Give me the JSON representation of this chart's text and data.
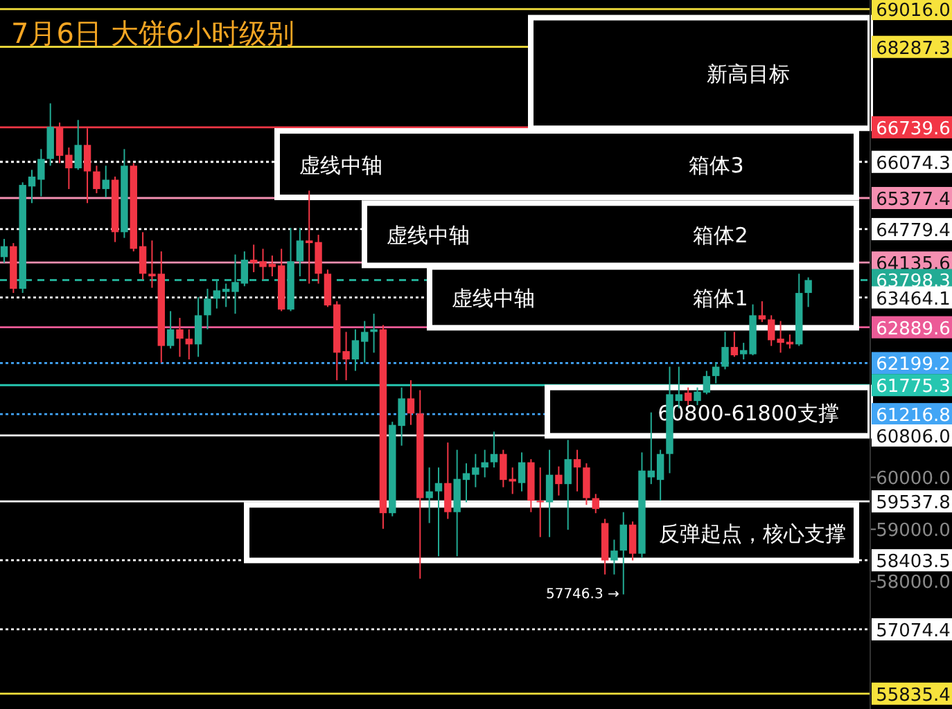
{
  "chart_data": {
    "type": "candlestick",
    "title": "7月6日 大饼6小时级别",
    "tick_labels": "y",
    "categories": [
      null,
      null,
      null,
      null,
      null,
      null,
      null,
      null,
      null,
      null,
      null,
      null,
      null,
      null,
      null,
      null,
      null,
      null,
      null,
      null,
      null,
      null,
      null,
      null,
      null,
      null,
      null,
      null,
      null,
      null,
      null,
      null,
      null,
      null,
      null,
      null,
      null,
      null,
      null,
      null,
      null,
      null,
      null,
      null,
      null,
      null,
      null,
      null,
      null,
      null,
      null,
      null,
      null,
      null,
      null,
      null,
      null,
      null,
      null,
      null,
      null,
      null,
      null,
      null,
      null,
      null,
      null,
      null,
      null,
      null,
      null,
      null,
      null,
      null,
      null,
      null,
      null,
      null,
      null,
      null,
      null,
      null,
      null,
      null,
      null,
      null,
      null,
      null
    ],
    "ohlc": [
      [
        64240,
        64590,
        64130,
        64450
      ],
      [
        64450,
        64510,
        63550,
        63630
      ],
      [
        63630,
        65680,
        63550,
        65630
      ],
      [
        65600,
        65920,
        65280,
        65790
      ],
      [
        65730,
        66320,
        65410,
        66130
      ],
      [
        66130,
        67200,
        66000,
        66750
      ],
      [
        66750,
        66830,
        66050,
        66190
      ],
      [
        66210,
        66350,
        65550,
        65950
      ],
      [
        65950,
        66880,
        65920,
        66400
      ],
      [
        66400,
        66720,
        65280,
        65890
      ],
      [
        65890,
        66000,
        65470,
        65550
      ],
      [
        65550,
        66000,
        65390,
        65730
      ],
      [
        65730,
        65790,
        64530,
        64720
      ],
      [
        64720,
        66320,
        64610,
        66000
      ],
      [
        66000,
        66050,
        64350,
        64400
      ],
      [
        64450,
        64720,
        63810,
        63920
      ],
      [
        63920,
        64560,
        63650,
        63870
      ],
      [
        63920,
        64350,
        62210,
        62530
      ],
      [
        62530,
        63200,
        62480,
        62850
      ],
      [
        62850,
        63070,
        62320,
        62670
      ],
      [
        62670,
        62850,
        62270,
        62560
      ],
      [
        62560,
        63470,
        62320,
        63120
      ],
      [
        63120,
        63630,
        62850,
        63440
      ],
      [
        63440,
        63810,
        63250,
        63600
      ],
      [
        63570,
        63730,
        63280,
        63630
      ],
      [
        63570,
        64290,
        63150,
        63760
      ],
      [
        63730,
        64350,
        63680,
        64190
      ],
      [
        64190,
        64480,
        63950,
        64130
      ],
      [
        64160,
        64400,
        63810,
        64050
      ],
      [
        64110,
        64270,
        63870,
        64050
      ],
      [
        64080,
        64400,
        63200,
        63230
      ],
      [
        63230,
        64800,
        63200,
        64160
      ],
      [
        64160,
        64800,
        63870,
        64560
      ],
      [
        64560,
        65520,
        63730,
        64510
      ],
      [
        64530,
        64670,
        63730,
        63920
      ],
      [
        63920,
        64000,
        63280,
        63310
      ],
      [
        63330,
        63390,
        61870,
        62400
      ],
      [
        62430,
        62800,
        61870,
        62270
      ],
      [
        62270,
        62850,
        62050,
        62640
      ],
      [
        62610,
        63010,
        62210,
        62800
      ],
      [
        62800,
        63150,
        62400,
        62850
      ],
      [
        62850,
        62930,
        59010,
        59310
      ],
      [
        59310,
        61070,
        59250,
        61010
      ],
      [
        60990,
        61730,
        60610,
        61520
      ],
      [
        61520,
        61870,
        61010,
        61230
      ],
      [
        61230,
        61680,
        58050,
        59600
      ],
      [
        59600,
        60190,
        59120,
        59730
      ],
      [
        59730,
        60190,
        58480,
        59890
      ],
      [
        59890,
        60670,
        59200,
        59330
      ],
      [
        59330,
        60530,
        58480,
        59970
      ],
      [
        59950,
        60270,
        59520,
        60080
      ],
      [
        60050,
        60450,
        59810,
        60190
      ],
      [
        60190,
        60530,
        60000,
        60290
      ],
      [
        60290,
        60880,
        60190,
        60450
      ],
      [
        60450,
        60530,
        59810,
        59950
      ],
      [
        59970,
        60190,
        59680,
        59920
      ],
      [
        59890,
        60480,
        59730,
        60290
      ],
      [
        60290,
        60350,
        59330,
        59550
      ],
      [
        59550,
        60190,
        58850,
        59520
      ],
      [
        59520,
        60530,
        58850,
        60050
      ],
      [
        60050,
        60210,
        59650,
        59870
      ],
      [
        59870,
        60720,
        58990,
        60350
      ],
      [
        60350,
        60530,
        59730,
        60190
      ],
      [
        60190,
        60270,
        59470,
        59600
      ],
      [
        59600,
        59680,
        59310,
        59390
      ],
      [
        59120,
        59200,
        58130,
        58400
      ],
      [
        58400,
        58800,
        58130,
        58590
      ],
      [
        58590,
        59330,
        57746.3,
        59090
      ],
      [
        59090,
        59150,
        58400,
        58530
      ],
      [
        58530,
        60480,
        58450,
        60130
      ],
      [
        60000,
        61250,
        59870,
        60130
      ],
      [
        59950,
        60530,
        59550,
        60450
      ],
      [
        60450,
        62130,
        60080,
        61600
      ],
      [
        61470,
        62130,
        61330,
        61600
      ],
      [
        61630,
        61730,
        61390,
        61470
      ],
      [
        61470,
        61730,
        61390,
        61650
      ],
      [
        61630,
        62050,
        61600,
        61950
      ],
      [
        61950,
        62210,
        61810,
        62130
      ],
      [
        62130,
        62800,
        62080,
        62510
      ],
      [
        62510,
        62800,
        62320,
        62350
      ],
      [
        62370,
        62590,
        62270,
        62450
      ],
      [
        62370,
        63330,
        62350,
        63120
      ],
      [
        63120,
        63390,
        62990,
        63040
      ],
      [
        63040,
        63120,
        62530,
        62640
      ],
      [
        62670,
        63010,
        62400,
        62590
      ],
      [
        62610,
        62750,
        62480,
        62560
      ],
      [
        62560,
        63920,
        62530,
        63550
      ],
      [
        63550,
        63850,
        63280,
        63798.3
      ]
    ],
    "colors": [
      "#22ab94",
      "#f23645",
      "#22ab94",
      "#22ab94",
      "#22ab94",
      "#22ab94",
      "#f23645",
      "#f23645",
      "#22ab94",
      "#f23645",
      "#f23645",
      "#22ab94",
      "#f23645",
      "#22ab94",
      "#f23645",
      "#f23645",
      "#f23645",
      "#f23645",
      "#22ab94",
      "#f23645",
      "#f23645",
      "#22ab94",
      "#22ab94",
      "#22ab94",
      "#22ab94",
      "#22ab94",
      "#22ab94",
      "#f23645",
      "#f23645",
      "#f23645",
      "#f23645",
      "#22ab94",
      "#22ab94",
      "#f23645",
      "#f23645",
      "#f23645",
      "#f23645",
      "#f23645",
      "#22ab94",
      "#22ab94",
      "#22ab94",
      "#f23645",
      "#22ab94",
      "#22ab94",
      "#f23645",
      "#f23645",
      "#22ab94",
      "#22ab94",
      "#f23645",
      "#22ab94",
      "#22ab94",
      "#22ab94",
      "#22ab94",
      "#22ab94",
      "#f23645",
      "#f23645",
      "#22ab94",
      "#f23645",
      "#f23645",
      "#22ab94",
      "#f23645",
      "#22ab94",
      "#f23645",
      "#f23645",
      "#f23645",
      "#f23645",
      "#22ab94",
      "#22ab94",
      "#f23645",
      "#22ab94",
      "#22ab94",
      "#22ab94",
      "#22ab94",
      "#22ab94",
      "#f23645",
      "#22ab94",
      "#22ab94",
      "#22ab94",
      "#22ab94",
      "#f23645",
      "#22ab94",
      "#22ab94",
      "#f23645",
      "#f23645",
      "#f23645",
      "#f23645",
      "#22ab94",
      "#22ab94"
    ],
    "ylim": [
      55540,
      69190
    ],
    "yticks": [
      {
        "value": 58000,
        "label": "58000.0"
      },
      {
        "value": 59000,
        "label": "59000.0"
      },
      {
        "value": 60000,
        "label": "60000.0"
      }
    ],
    "ref_lines": [
      {
        "axis": "y",
        "value": 69016.0,
        "label": "69016.0",
        "color": "#f7e23c",
        "line_style": "solid"
      },
      {
        "axis": "y",
        "value": 68287.3,
        "label": "68287.3",
        "color": "#f7e23c",
        "line_style": "solid"
      },
      {
        "axis": "y",
        "value": 66739.6,
        "label": "66739.6",
        "color": "#f23645",
        "line_style": "solid"
      },
      {
        "axis": "y",
        "value": 66074.3,
        "label": "66074.3",
        "color": "#ffffff",
        "line_style": "dotted"
      },
      {
        "axis": "y",
        "value": 65377.4,
        "label": "65377.4",
        "color": "#f48fb1",
        "line_style": "solid"
      },
      {
        "axis": "y",
        "value": 64779.4,
        "label": "64779.4",
        "color": "#ffffff",
        "line_style": "dotted"
      },
      {
        "axis": "y",
        "value": 64135.6,
        "label": "64135.6",
        "color": "#f48fb1",
        "line_style": "solid"
      },
      {
        "axis": "y",
        "value": 63798.3,
        "label": "63798.3",
        "color": "#22ab94",
        "line_style": "dashed"
      },
      {
        "axis": "y",
        "value": 63464.1,
        "label": "63464.1",
        "color": "#ffffff",
        "line_style": "dotted"
      },
      {
        "axis": "y",
        "value": 62889.6,
        "label": "62889.6",
        "color": "#ec5b97",
        "line_style": "solid"
      },
      {
        "axis": "y",
        "value": 62199.2,
        "label": "62199.2",
        "color": "#42a5f5",
        "line_style": "dotted"
      },
      {
        "axis": "y",
        "value": 61775.3,
        "label": "61775.3",
        "color": "#26c6b0",
        "line_style": "solid"
      },
      {
        "axis": "y",
        "value": 61216.8,
        "label": "61216.8",
        "color": "#42a5f5",
        "line_style": "dotted"
      },
      {
        "axis": "y",
        "value": 60806.0,
        "label": "60806.0",
        "color": "#ffffff",
        "line_style": "solid"
      },
      {
        "axis": "y",
        "value": 59537.8,
        "label": "59537.8",
        "color": "#ffffff",
        "line_style": "solid"
      },
      {
        "axis": "y",
        "value": 58403.5,
        "label": "58403.5",
        "color": "#ffffff",
        "line_style": "dotted"
      },
      {
        "axis": "y",
        "value": 57074.4,
        "label": "57074.4",
        "color": "#ffffff",
        "line_style": "dotted"
      },
      {
        "axis": "y",
        "value": 55835.4,
        "label": "55835.4",
        "color": "#f7e23c",
        "line_style": "solid"
      }
    ],
    "bands": [
      {
        "axis": "y",
        "from": 66720,
        "to": 68850,
        "label": "新高目标"
      },
      {
        "axis": "y",
        "from": 65390,
        "to": 66670,
        "label": "箱体3"
      },
      {
        "axis": "y",
        "from": 64080,
        "to": 65280,
        "label": "箱体2"
      },
      {
        "axis": "y",
        "from": 62880,
        "to": 64050,
        "label": "箱体1"
      },
      {
        "axis": "y",
        "from": 60800,
        "to": 61730,
        "label": "60800-61800支撑"
      },
      {
        "axis": "y",
        "from": 58400,
        "to": 59470,
        "label": "反弹起点，核心支撑"
      }
    ],
    "annotations": [
      "虚线中轴",
      "虚线中轴",
      "虚线中轴",
      "57746.3 →"
    ]
  }
}
